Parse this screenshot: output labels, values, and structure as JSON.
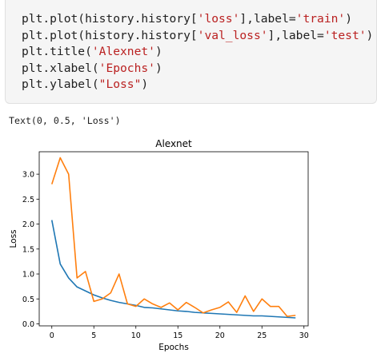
{
  "code": {
    "lines": [
      {
        "pre": "plt.plot(history.history[",
        "str": "'loss'",
        "mid": "],label=",
        "str2": "'train'",
        "post": ")"
      },
      {
        "pre": "plt.plot(history.history[",
        "str": "'val_loss'",
        "mid": "],label=",
        "str2": "'test'",
        "post": ")"
      },
      {
        "pre": "plt.title(",
        "str": "'Alexnet'",
        "mid": ")",
        "str2": "",
        "post": ""
      },
      {
        "pre": "plt.xlabel(",
        "str": "'Epochs'",
        "mid": ")",
        "str2": "",
        "post": ""
      },
      {
        "pre": "plt.ylabel(",
        "str": "\"Loss\"",
        "mid": ")",
        "str2": "",
        "post": ""
      }
    ]
  },
  "output": {
    "text": "Text(0, 0.5, 'Loss')"
  },
  "chart_data": {
    "type": "line",
    "title": "Alexnet",
    "xlabel": "Epochs",
    "ylabel": "Loss",
    "xlim": [
      -1.5,
      30.5
    ],
    "ylim": [
      -0.04,
      3.45
    ],
    "xticks": [
      0,
      5,
      10,
      15,
      20,
      25,
      30
    ],
    "yticks": [
      0.0,
      0.5,
      1.0,
      1.5,
      2.0,
      2.5,
      3.0
    ],
    "xtick_labels": [
      "0",
      "5",
      "10",
      "15",
      "20",
      "25",
      "30"
    ],
    "ytick_labels": [
      "0.0",
      "0.5",
      "1.0",
      "1.5",
      "2.0",
      "2.5",
      "3.0"
    ],
    "grid": false,
    "series": [
      {
        "color": "#1f77b4",
        "x": [
          0,
          1,
          2,
          3,
          4,
          5,
          6,
          7,
          8,
          9,
          10,
          11,
          12,
          13,
          14,
          15,
          16,
          17,
          18,
          19,
          20,
          21,
          22,
          23,
          24,
          25,
          26,
          27,
          28,
          29
        ],
        "values": [
          2.08,
          1.2,
          0.92,
          0.74,
          0.66,
          0.58,
          0.52,
          0.47,
          0.43,
          0.4,
          0.37,
          0.33,
          0.32,
          0.3,
          0.28,
          0.26,
          0.25,
          0.23,
          0.22,
          0.21,
          0.2,
          0.19,
          0.18,
          0.17,
          0.16,
          0.16,
          0.15,
          0.14,
          0.13,
          0.12
        ]
      },
      {
        "color": "#ff7f0e",
        "x": [
          0,
          1,
          2,
          3,
          4,
          5,
          6,
          7,
          8,
          9,
          10,
          11,
          12,
          13,
          14,
          15,
          16,
          17,
          18,
          19,
          20,
          21,
          22,
          23,
          24,
          25,
          26,
          27,
          28,
          29
        ],
        "values": [
          2.8,
          3.33,
          3.0,
          0.92,
          1.05,
          0.45,
          0.5,
          0.62,
          1.0,
          0.4,
          0.35,
          0.5,
          0.4,
          0.33,
          0.42,
          0.28,
          0.43,
          0.33,
          0.22,
          0.28,
          0.33,
          0.44,
          0.23,
          0.56,
          0.25,
          0.5,
          0.35,
          0.35,
          0.15,
          0.17
        ]
      }
    ]
  }
}
